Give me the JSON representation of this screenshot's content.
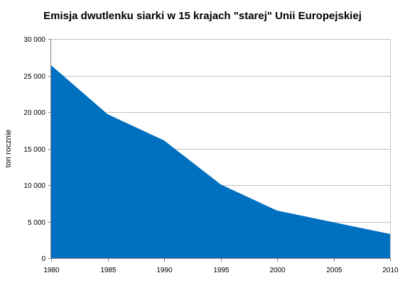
{
  "chart_data": {
    "type": "area",
    "title": "Emisja dwutlenku siarki w 15 krajach \"starej\" Unii Europejskiej",
    "xlabel": "",
    "ylabel": "ton rocznie",
    "x": [
      1980,
      1985,
      1990,
      1995,
      2000,
      2005,
      2010
    ],
    "x_tick_labels": [
      "1980",
      "1985",
      "1990",
      "1995",
      "2000",
      "2005",
      "2010"
    ],
    "series": [
      {
        "values": [
          26400,
          19700,
          16100,
          10100,
          6500,
          4900,
          3300
        ]
      }
    ],
    "xlim": [
      1980,
      2010
    ],
    "ylim": [
      0,
      30000
    ],
    "y_ticks": [
      0,
      5000,
      10000,
      15000,
      20000,
      25000,
      30000
    ],
    "y_tick_labels": [
      "0",
      "5 000",
      "10 000",
      "15 000",
      "20 000",
      "25 000",
      "30 000"
    ],
    "grid": true,
    "legend": "none",
    "colors": {
      "area_fill": "#0070C0",
      "grid": "#C0C0C0",
      "plot_border": "#C0C0C0"
    }
  }
}
